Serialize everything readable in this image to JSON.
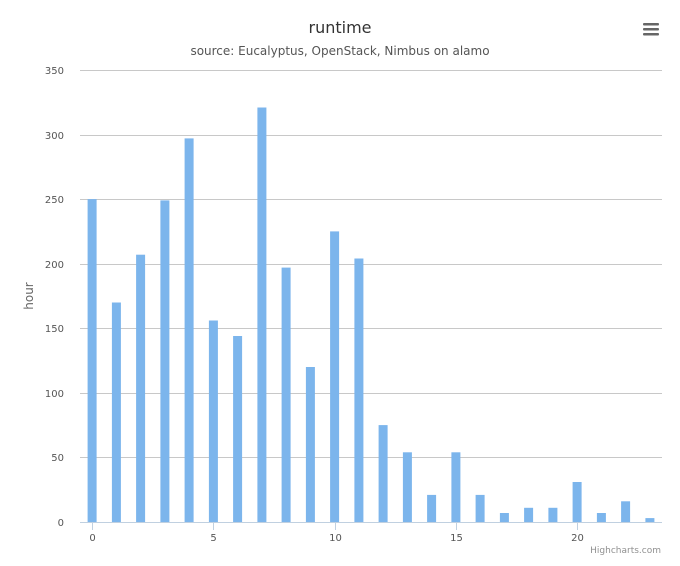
{
  "chart_data": {
    "type": "bar",
    "title": "runtime",
    "subtitle": "source: Eucalyptus, OpenStack, Nimbus on alamo",
    "xlabel": "",
    "ylabel": "hour",
    "x": [
      0,
      1,
      2,
      3,
      4,
      5,
      6,
      7,
      8,
      9,
      10,
      11,
      12,
      13,
      14,
      15,
      16,
      17,
      18,
      19,
      20,
      21,
      22,
      23
    ],
    "values": [
      250,
      170,
      207,
      249,
      297,
      156,
      144,
      321,
      197,
      120,
      225,
      204,
      75,
      54,
      21,
      54,
      21,
      7,
      11,
      11,
      31,
      7,
      16,
      3
    ],
    "ylim": [
      0,
      350
    ],
    "xlim": [
      -0.5,
      23.5
    ],
    "yticks": [
      0,
      50,
      100,
      150,
      200,
      250,
      300,
      350
    ],
    "xticks": [
      0,
      5,
      10,
      15,
      20
    ],
    "grid": true,
    "legend": "none",
    "bar_color": "#7cb5ec"
  },
  "credits": "Highcharts.com",
  "menu_icon": "hamburger-menu-icon"
}
